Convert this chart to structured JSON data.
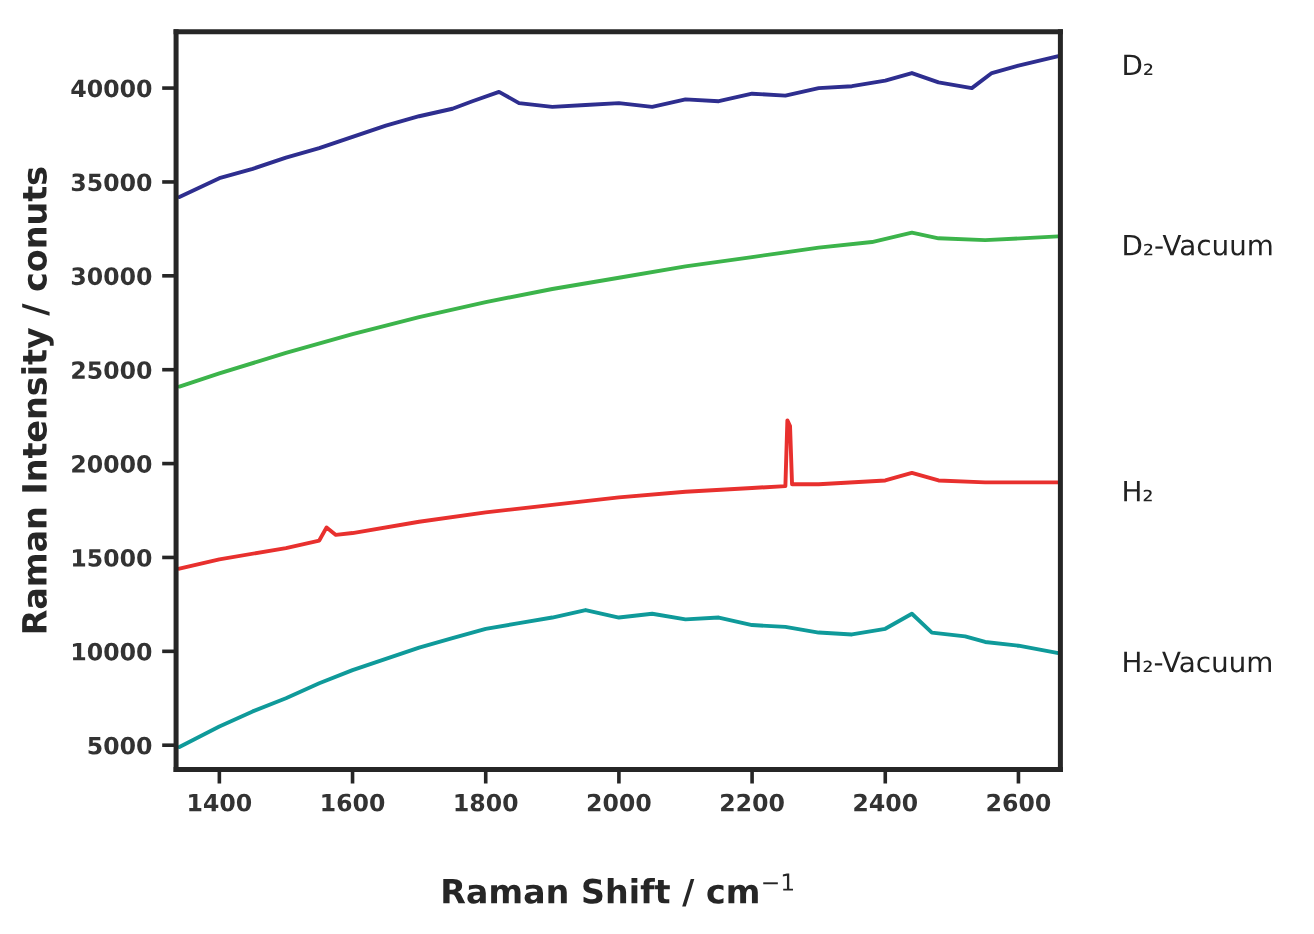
{
  "chart_data": {
    "type": "line",
    "xlabel": "Raman Shift / cm$^{−1}$",
    "ylabel": "Raman Intensity / conuts",
    "xlim": [
      1335,
      2663
    ],
    "xticks": [
      1400,
      1600,
      1800,
      2000,
      2200,
      2400,
      2600
    ],
    "ylim": [
      3700,
      43000
    ],
    "yticks": [
      5000,
      10000,
      15000,
      20000,
      25000,
      30000,
      35000,
      40000
    ],
    "grid": false,
    "line_style": "solid",
    "marker": "none",
    "series": [
      {
        "name": "D₂",
        "color": "#2e2e8f",
        "x": [
          1340,
          1400,
          1450,
          1500,
          1550,
          1600,
          1650,
          1700,
          1750,
          1780,
          1820,
          1850,
          1900,
          1950,
          2000,
          2050,
          2100,
          2150,
          2200,
          2250,
          2300,
          2350,
          2400,
          2440,
          2480,
          2530,
          2560,
          2600,
          2660
        ],
        "values": [
          34200,
          35200,
          35700,
          36300,
          36800,
          37400,
          38000,
          38500,
          38900,
          39300,
          39800,
          39200,
          39000,
          39100,
          39200,
          39000,
          39400,
          39300,
          39700,
          39600,
          40000,
          40100,
          40400,
          40800,
          40300,
          40000,
          40800,
          41200,
          41700
        ]
      },
      {
        "name": "D₂-Vacuum",
        "color": "#3cb44b",
        "x": [
          1340,
          1400,
          1500,
          1600,
          1700,
          1800,
          1900,
          2000,
          2100,
          2200,
          2300,
          2380,
          2440,
          2480,
          2550,
          2660
        ],
        "values": [
          24100,
          24800,
          25900,
          26900,
          27800,
          28600,
          29300,
          29900,
          30500,
          31000,
          31500,
          31800,
          32300,
          32000,
          31900,
          32100
        ]
      },
      {
        "name": "H₂",
        "color": "#e8302e",
        "x": [
          1340,
          1400,
          1500,
          1550,
          1561,
          1575,
          1600,
          1700,
          1800,
          1900,
          2000,
          2100,
          2200,
          2250,
          2253,
          2257,
          2260,
          2300,
          2400,
          2440,
          2480,
          2550,
          2660
        ],
        "values": [
          14400,
          14900,
          15500,
          15900,
          16600,
          16200,
          16300,
          16900,
          17400,
          17800,
          18200,
          18500,
          18700,
          18800,
          22300,
          22000,
          18900,
          18900,
          19100,
          19500,
          19100,
          19000,
          19000
        ]
      },
      {
        "name": "H₂-Vacuum",
        "color": "#0f9a9a",
        "x": [
          1340,
          1400,
          1450,
          1500,
          1550,
          1600,
          1650,
          1700,
          1750,
          1800,
          1850,
          1900,
          1950,
          2000,
          2050,
          2100,
          2150,
          2200,
          2250,
          2300,
          2350,
          2400,
          2440,
          2470,
          2520,
          2550,
          2600,
          2660
        ],
        "values": [
          4900,
          6000,
          6800,
          7500,
          8300,
          9000,
          9600,
          10200,
          10700,
          11200,
          11500,
          11800,
          12200,
          11800,
          12000,
          11700,
          11800,
          11400,
          11300,
          11000,
          10900,
          11200,
          12000,
          11000,
          10800,
          10500,
          10300,
          9900
        ]
      }
    ]
  }
}
